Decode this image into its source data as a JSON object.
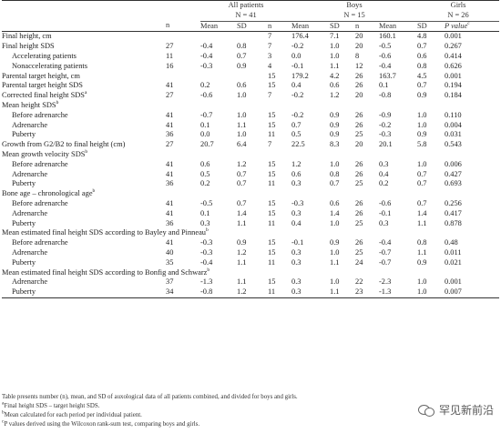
{
  "header": {
    "group_all": "All patients",
    "group_boys": "Boys",
    "group_girls": "Girls",
    "n_all": "N = 41",
    "n_boys": "N = 15",
    "n_girls": "N = 26",
    "col_n": "n",
    "col_mean": "Mean",
    "col_sd": "SD",
    "col_p": "P value",
    "col_p_sup": "c"
  },
  "rows": [
    {
      "label": "Final height, cm",
      "indent": false,
      "v": [
        "",
        "",
        "",
        "7",
        "176.4",
        "7.1",
        "20",
        "160.1",
        "4.8",
        "0.001"
      ]
    },
    {
      "label": "Final height SDS",
      "indent": false,
      "v": [
        "27",
        "-0.4",
        "0.8",
        "7",
        "-0.2",
        "1.0",
        "20",
        "-0.5",
        "0.7",
        "0.267"
      ]
    },
    {
      "label": "Accelerating patients",
      "indent": true,
      "v": [
        "11",
        "-0.4",
        "0.7",
        "3",
        "0.0",
        "1.0",
        "8",
        "-0.6",
        "0.6",
        "0.414"
      ]
    },
    {
      "label": "Nonaccelerating patients",
      "indent": true,
      "v": [
        "16",
        "-0.3",
        "0.9",
        "4",
        "-0.1",
        "1.1",
        "12",
        "-0.4",
        "0.8",
        "0.626"
      ]
    },
    {
      "label": "Parental target height, cm",
      "indent": false,
      "v": [
        "",
        "",
        "",
        "15",
        "179.2",
        "4.2",
        "26",
        "163.7",
        "4.5",
        "0.001"
      ]
    },
    {
      "label": "Parental target height SDS",
      "indent": false,
      "v": [
        "41",
        "0.2",
        "0.6",
        "15",
        "0.4",
        "0.6",
        "26",
        "0.1",
        "0.7",
        "0.194"
      ]
    },
    {
      "label": "Corrected final height SDS",
      "sup": "a",
      "indent": false,
      "v": [
        "27",
        "-0.6",
        "1.0",
        "7",
        "-0.2",
        "1.2",
        "20",
        "-0.8",
        "0.9",
        "0.184"
      ]
    },
    {
      "label": "Mean height SDS",
      "sup": "b",
      "indent": false,
      "section": true,
      "v": []
    },
    {
      "label": "Before adrenarche",
      "indent": true,
      "v": [
        "41",
        "-0.7",
        "1.0",
        "15",
        "-0.2",
        "0.9",
        "26",
        "-0.9",
        "1.0",
        "0.110"
      ]
    },
    {
      "label": "Adrenarche",
      "indent": true,
      "v": [
        "41",
        "0.1",
        "1.1",
        "15",
        "0.7",
        "0.9",
        "26",
        "-0.2",
        "1.0",
        "0.004"
      ]
    },
    {
      "label": "Puberty",
      "indent": true,
      "v": [
        "36",
        "0.0",
        "1.0",
        "11",
        "0.5",
        "0.9",
        "25",
        "-0.3",
        "0.9",
        "0.031"
      ]
    },
    {
      "label": "Growth from G2/B2 to final height (cm)",
      "indent": false,
      "v": [
        "27",
        "20.7",
        "6.4",
        "7",
        "22.5",
        "8.3",
        "20",
        "20.1",
        "5.8",
        "0.543"
      ]
    },
    {
      "label": "Mean growth velocity SDS",
      "sup": "b",
      "indent": false,
      "section": true,
      "v": []
    },
    {
      "label": "Before adrenarche",
      "indent": true,
      "v": [
        "41",
        "0.6",
        "1.2",
        "15",
        "1.2",
        "1.0",
        "26",
        "0.3",
        "1.0",
        "0.006"
      ]
    },
    {
      "label": "Adrenarche",
      "indent": true,
      "v": [
        "41",
        "0.5",
        "0.7",
        "15",
        "0.6",
        "0.8",
        "26",
        "0.4",
        "0.7",
        "0.427"
      ]
    },
    {
      "label": "Puberty",
      "indent": true,
      "v": [
        "36",
        "0.2",
        "0.7",
        "11",
        "0.3",
        "0.7",
        "25",
        "0.2",
        "0.7",
        "0.693"
      ]
    },
    {
      "label": "Bone age – chronological age",
      "sup": "b",
      "indent": false,
      "section": true,
      "v": []
    },
    {
      "label": "Before adrenarche",
      "indent": true,
      "v": [
        "41",
        "-0.5",
        "0.7",
        "15",
        "-0.3",
        "0.6",
        "26",
        "-0.6",
        "0.7",
        "0.256"
      ]
    },
    {
      "label": "Adrenarche",
      "indent": true,
      "v": [
        "41",
        "0.1",
        "1.4",
        "15",
        "0.3",
        "1.4",
        "26",
        "-0.1",
        "1.4",
        "0.417"
      ]
    },
    {
      "label": "Puberty",
      "indent": true,
      "v": [
        "36",
        "0.3",
        "1.1",
        "11",
        "0.4",
        "1.0",
        "25",
        "0.3",
        "1.1",
        "0.878"
      ]
    },
    {
      "label": "Mean estimated final height SDS according to Bayley and Pinneau",
      "sup": "b",
      "indent": false,
      "section": true,
      "v": []
    },
    {
      "label": "Before adrenarche",
      "indent": true,
      "v": [
        "41",
        "-0.3",
        "0.9",
        "15",
        "-0.1",
        "0.9",
        "26",
        "-0.4",
        "0.8",
        "0.48"
      ]
    },
    {
      "label": "Adrenarche",
      "indent": true,
      "v": [
        "40",
        "-0.3",
        "1.2",
        "15",
        "0.3",
        "1.0",
        "25",
        "-0.7",
        "1.1",
        "0.011"
      ]
    },
    {
      "label": "Puberty",
      "indent": true,
      "v": [
        "35",
        "-0.4",
        "1.1",
        "11",
        "0.3",
        "1.1",
        "24",
        "-0.7",
        "0.9",
        "0.021"
      ]
    },
    {
      "label": "Mean estimated final height SDS according to Bonfig and Schwarz",
      "sup": "b",
      "indent": false,
      "section": true,
      "v": []
    },
    {
      "label": "Adrenarche",
      "indent": true,
      "v": [
        "37",
        "-1.3",
        "1.1",
        "15",
        "0.3",
        "1.0",
        "22",
        "-2.3",
        "1.0",
        "0.001"
      ]
    },
    {
      "label": "Puberty",
      "indent": true,
      "v": [
        "34",
        "-0.8",
        "1.2",
        "11",
        "0.3",
        "1.1",
        "23",
        "-1.3",
        "1.0",
        "0.007"
      ]
    }
  ],
  "notes": {
    "main": "Table presents number (n), mean, and SD of auxological data of all patients combined, and divided for boys and girls.",
    "a_sup": "a",
    "a": "Final height SDS – target height SDS.",
    "b_sup": "b",
    "b": "Mean calculated for each period per individual patient.",
    "c_sup": "c",
    "c": "P values derived using the Wilcoxon rank-sum test, comparing boys and girls."
  },
  "watermark": {
    "text": "罕见新前沿",
    "icon": "wechat-icon"
  }
}
